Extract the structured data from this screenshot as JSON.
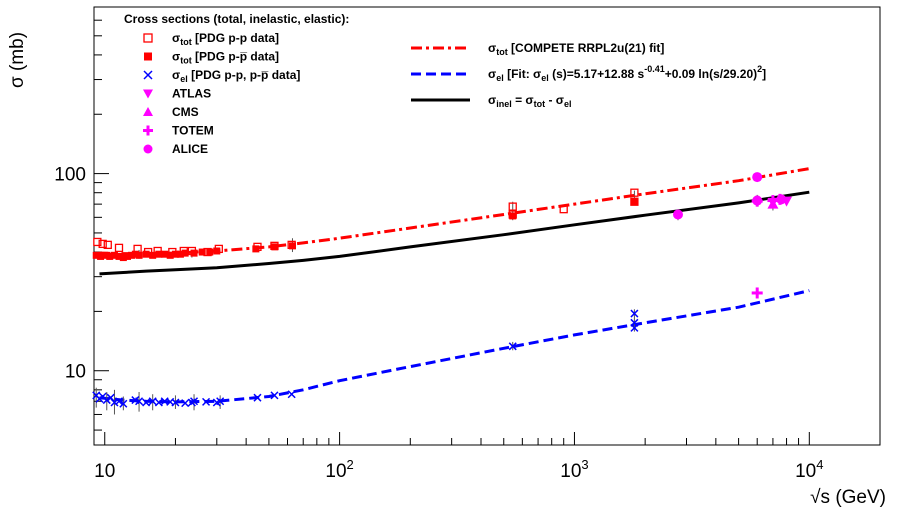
{
  "chart_data": {
    "type": "scatter",
    "ylabel": "σ (mb)",
    "xlabel": "√s (GeV)",
    "x_scale": "log",
    "y_scale": "log",
    "xlim": [
      9,
      20000
    ],
    "ylim": [
      4.2,
      700
    ],
    "x_ticks": [
      {
        "value": 10,
        "label": "10"
      },
      {
        "value": 100,
        "label": "10",
        "exp": "2"
      },
      {
        "value": 1000,
        "label": "10",
        "exp": "3"
      },
      {
        "value": 10000,
        "label": "10",
        "exp": "4"
      }
    ],
    "y_ticks": [
      {
        "value": 10,
        "label": "10"
      },
      {
        "value": 100,
        "label": "100"
      }
    ],
    "legend_left": {
      "header": "Cross sections (total, inelastic, elastic):",
      "items": [
        {
          "key": "pdg_pp_tot",
          "main": "σ",
          "sub": "tot",
          "rest": " [PDG p-p data]",
          "marker": "open-square",
          "color": "#ff0000"
        },
        {
          "key": "pdg_ppbar_tot",
          "main": "σ",
          "sub": "tot",
          "rest": " [PDG p-p̅ data]",
          "marker": "filled-square",
          "color": "#ff0000"
        },
        {
          "key": "pdg_el",
          "main": "σ",
          "sub": "el",
          "rest": " [PDG p-p, p-p̅ data]",
          "marker": "cross",
          "color": "#0000ff"
        },
        {
          "key": "atlas",
          "main": "ATLAS",
          "sub": "",
          "rest": "",
          "marker": "triangle-down",
          "color": "#ff00ff"
        },
        {
          "key": "cms",
          "main": "CMS",
          "sub": "",
          "rest": "",
          "marker": "triangle-up",
          "color": "#ff00ff"
        },
        {
          "key": "totem",
          "main": "TOTEM",
          "sub": "",
          "rest": "",
          "marker": "plus",
          "color": "#ff00ff"
        },
        {
          "key": "alice",
          "main": "ALICE",
          "sub": "",
          "rest": "",
          "marker": "circle",
          "color": "#ff00ff"
        }
      ]
    },
    "legend_right": [
      {
        "key": "fit_tot",
        "style": "dash-dot",
        "color": "#ff0000",
        "parts": [
          [
            "σ",
            ""
          ],
          [
            "tot",
            "sub"
          ],
          [
            " [COMPETE RRPL2u(21) fit]",
            ""
          ]
        ]
      },
      {
        "key": "fit_el",
        "style": "dashed",
        "color": "#0000ff",
        "parts": [
          [
            "σ",
            ""
          ],
          [
            "el",
            "sub"
          ],
          [
            "  [Fit: σ",
            ""
          ],
          [
            "el",
            "sub"
          ],
          [
            " (s)=5.17+12.88 s",
            ""
          ],
          [
            "-0.41",
            "sup"
          ],
          [
            "+0.09 ln(s/29.20)",
            ""
          ],
          [
            "2",
            "sup"
          ],
          [
            "]",
            ""
          ]
        ]
      },
      {
        "key": "inel",
        "style": "solid",
        "color": "#000000",
        "parts": [
          [
            "σ",
            ""
          ],
          [
            "inel",
            "sub"
          ],
          [
            " = σ",
            ""
          ],
          [
            "tot",
            "sub"
          ],
          [
            " - σ",
            ""
          ],
          [
            "el",
            "sub"
          ]
        ]
      }
    ],
    "curves": [
      {
        "key": "fit_tot",
        "color": "#ff0000",
        "style": "dash-dot",
        "points": [
          [
            9.5,
            39.5
          ],
          [
            12,
            39.3
          ],
          [
            15,
            39.2
          ],
          [
            20,
            39.5
          ],
          [
            30,
            40.5
          ],
          [
            50,
            42.5
          ],
          [
            70,
            44.5
          ],
          [
            100,
            47
          ],
          [
            200,
            53
          ],
          [
            500,
            62
          ],
          [
            1000,
            70
          ],
          [
            2000,
            79
          ],
          [
            5000,
            92
          ],
          [
            10000,
            106
          ]
        ]
      },
      {
        "key": "fit_el",
        "color": "#0000ff",
        "style": "dashed",
        "points": [
          [
            9.5,
            7.3
          ],
          [
            12,
            7.1
          ],
          [
            15,
            7.0
          ],
          [
            20,
            6.95
          ],
          [
            30,
            7.0
          ],
          [
            50,
            7.4
          ],
          [
            70,
            8.0
          ],
          [
            100,
            8.9
          ],
          [
            200,
            10.5
          ],
          [
            500,
            13.0
          ],
          [
            1000,
            15.2
          ],
          [
            2000,
            17.5
          ],
          [
            5000,
            21.0
          ],
          [
            10000,
            25.5
          ]
        ]
      },
      {
        "key": "inel",
        "color": "#000000",
        "style": "solid",
        "points": [
          [
            9.5,
            31
          ],
          [
            12,
            31.5
          ],
          [
            15,
            32
          ],
          [
            20,
            32.5
          ],
          [
            30,
            33.3
          ],
          [
            50,
            35
          ],
          [
            70,
            36.3
          ],
          [
            100,
            38
          ],
          [
            200,
            42.5
          ],
          [
            500,
            49
          ],
          [
            1000,
            55
          ],
          [
            2000,
            61.5
          ],
          [
            5000,
            71
          ],
          [
            10000,
            80.5
          ]
        ]
      }
    ],
    "points": {
      "pdg_pp_tot": [
        [
          9.3,
          45
        ],
        [
          9.8,
          44
        ],
        [
          10.3,
          43.5
        ],
        [
          11.5,
          42
        ],
        [
          13.8,
          41.5
        ],
        [
          15.3,
          40
        ],
        [
          16.8,
          40.5
        ],
        [
          19.4,
          40
        ],
        [
          21.7,
          40.5
        ],
        [
          23.5,
          40.5
        ],
        [
          27.4,
          40
        ],
        [
          30.6,
          41.5
        ],
        [
          44.7,
          42.5
        ],
        [
          52.8,
          43
        ],
        [
          62.5,
          43.5
        ],
        [
          546,
          62
        ],
        [
          546,
          68
        ],
        [
          1800,
          72
        ],
        [
          1800,
          80
        ],
        [
          900,
          66
        ]
      ],
      "pdg_ppbar_tot": [
        [
          9.2,
          38.5
        ],
        [
          9.6,
          38
        ],
        [
          10,
          38.5
        ],
        [
          10.5,
          38
        ],
        [
          11,
          38.5
        ],
        [
          11.5,
          38
        ],
        [
          12,
          37.5
        ],
        [
          12.5,
          38
        ],
        [
          13,
          38.5
        ],
        [
          13.5,
          39
        ],
        [
          14,
          38.5
        ],
        [
          15,
          39
        ],
        [
          16,
          38.5
        ],
        [
          17,
          39
        ],
        [
          18,
          39
        ],
        [
          19,
          38.5
        ],
        [
          20,
          39
        ],
        [
          21,
          39
        ],
        [
          22,
          39.5
        ],
        [
          24,
          39.5
        ],
        [
          26,
          40
        ],
        [
          28,
          40
        ],
        [
          30,
          40.5
        ],
        [
          44,
          41.5
        ],
        [
          53,
          42.5
        ],
        [
          63,
          43
        ],
        [
          546,
          61
        ],
        [
          1800,
          72
        ]
      ],
      "pdg_el": [
        [
          9.2,
          7.5
        ],
        [
          9.5,
          7.2
        ],
        [
          9.8,
          7.4
        ],
        [
          10.2,
          7.1
        ],
        [
          10.6,
          7.3
        ],
        [
          11,
          6.9
        ],
        [
          11.5,
          7.0
        ],
        [
          12,
          6.8
        ],
        [
          13.5,
          7.1
        ],
        [
          14,
          7.0
        ],
        [
          15,
          6.9
        ],
        [
          16,
          7.0
        ],
        [
          17,
          6.9
        ],
        [
          18,
          7.0
        ],
        [
          19,
          6.95
        ],
        [
          20,
          6.9
        ],
        [
          22,
          6.85
        ],
        [
          23.5,
          6.9
        ],
        [
          24,
          7.0
        ],
        [
          27,
          6.95
        ],
        [
          30,
          6.9
        ],
        [
          31,
          7.0
        ],
        [
          44.7,
          7.3
        ],
        [
          52.8,
          7.5
        ],
        [
          62.5,
          7.6
        ],
        [
          546,
          13.3
        ],
        [
          1800,
          16.5
        ],
        [
          1800,
          17.5
        ],
        [
          1800,
          19.5
        ]
      ],
      "atlas": [
        [
          7000,
          71.5
        ],
        [
          8000,
          72.5
        ]
      ],
      "cms": [
        [
          7000,
          70
        ]
      ],
      "totem": [
        [
          7000,
          73
        ],
        [
          7500,
          74
        ],
        [
          6000,
          24.8
        ],
        [
          6000,
          72.5
        ]
      ],
      "alice": [
        [
          2760,
          62
        ],
        [
          6000,
          73
        ],
        [
          6000,
          96
        ],
        [
          7600,
          74
        ]
      ]
    },
    "error_bars": [
      [
        546,
        58,
        72
      ],
      [
        1800,
        70,
        82
      ],
      [
        6000,
        68,
        78
      ],
      [
        7000,
        65,
        76
      ],
      [
        8000,
        69,
        76
      ],
      [
        2760,
        58,
        66
      ],
      [
        9.2,
        6.5,
        8.2
      ],
      [
        10.2,
        6.3,
        7.8
      ],
      [
        11,
        6.0,
        8.0
      ],
      [
        12,
        6.3,
        7.4
      ],
      [
        14,
        6.2,
        7.8
      ],
      [
        16,
        6.3,
        7.6
      ],
      [
        20,
        6.4,
        7.5
      ],
      [
        24,
        6.3,
        7.6
      ],
      [
        31,
        6.4,
        7.5
      ],
      [
        546,
        12.7,
        14.0
      ],
      [
        1800,
        15.8,
        20.5
      ],
      [
        6000,
        24.0,
        25.8
      ],
      [
        63,
        40,
        47
      ],
      [
        14,
        37,
        41
      ],
      [
        23.5,
        37.5,
        41
      ]
    ]
  }
}
